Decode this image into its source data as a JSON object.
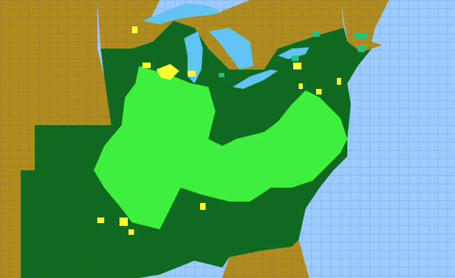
{
  "map": {
    "colors": {
      "ocean": "#9ccbff",
      "lakes": "#62c4f4",
      "outside_region": "#b08c1c",
      "region_base": "#0e6b1e",
      "highlight_light_green": "#3cf03c",
      "highlight_yellow": "#ffff33",
      "highlight_teal": "#22c28c",
      "county_lines": "#3a4a8a"
    }
  }
}
